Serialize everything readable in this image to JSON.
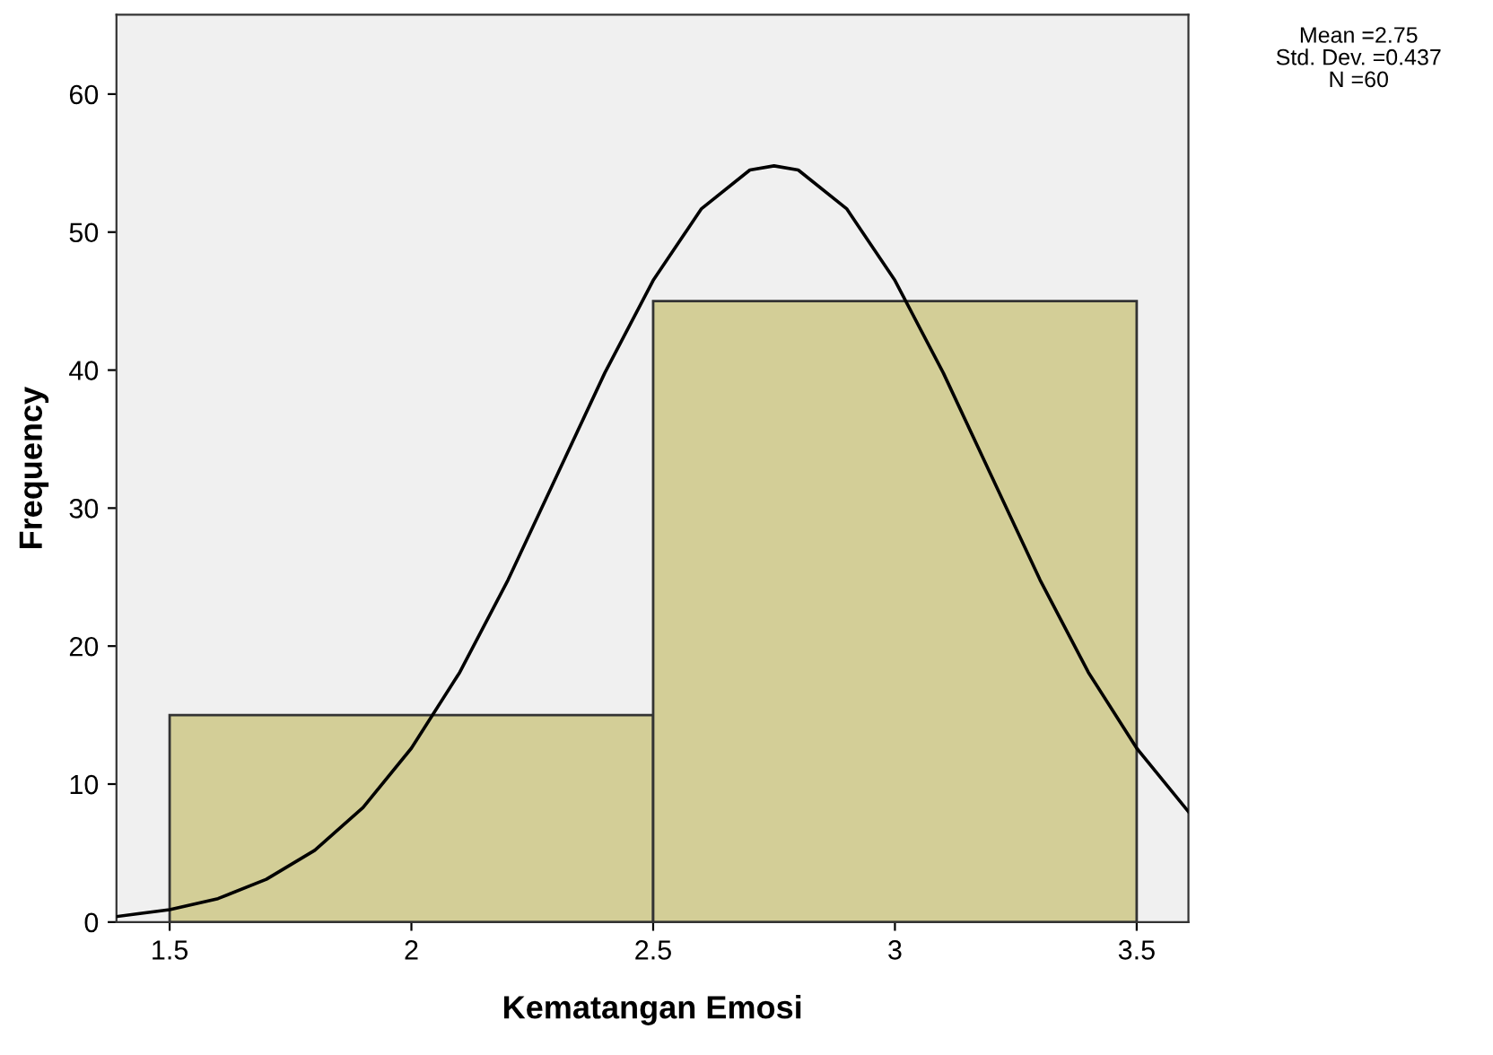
{
  "chart_data": {
    "type": "histogram",
    "xlabel": "Kematangan Emosi",
    "ylabel": "Frequency",
    "bins": [
      1.5,
      2.5,
      3.5
    ],
    "series": [
      {
        "color": "#d3ce97",
        "values": [
          15,
          45
        ]
      },
      {
        "type": "line",
        "color": "#000000",
        "x": [
          1.39,
          1.5,
          1.6,
          1.7,
          1.8,
          1.9,
          2.0,
          2.1,
          2.2,
          2.3,
          2.4,
          2.5,
          2.6,
          2.7,
          2.75,
          2.8,
          2.9,
          3.0,
          3.1,
          3.2,
          3.3,
          3.4,
          3.5,
          3.607
        ],
        "values": [
          0.4,
          0.9,
          1.7,
          3.1,
          5.2,
          8.3,
          12.6,
          18.1,
          24.8,
          32.3,
          39.8,
          46.5,
          51.7,
          54.5,
          54.8,
          54.5,
          51.7,
          46.5,
          39.8,
          32.3,
          24.8,
          18.1,
          12.6,
          8.0
        ]
      }
    ],
    "xlim": [
      1.39,
      3.607
    ],
    "xticks": [
      1.5,
      2,
      2.5,
      3,
      3.5
    ],
    "ylim": [
      0,
      65.75
    ],
    "yticks": [
      0,
      10,
      20,
      30,
      40,
      50,
      60
    ],
    "grid": false,
    "annotations": [
      "Mean =2.75",
      "Std. Dev. =0.437",
      "N =60"
    ]
  }
}
